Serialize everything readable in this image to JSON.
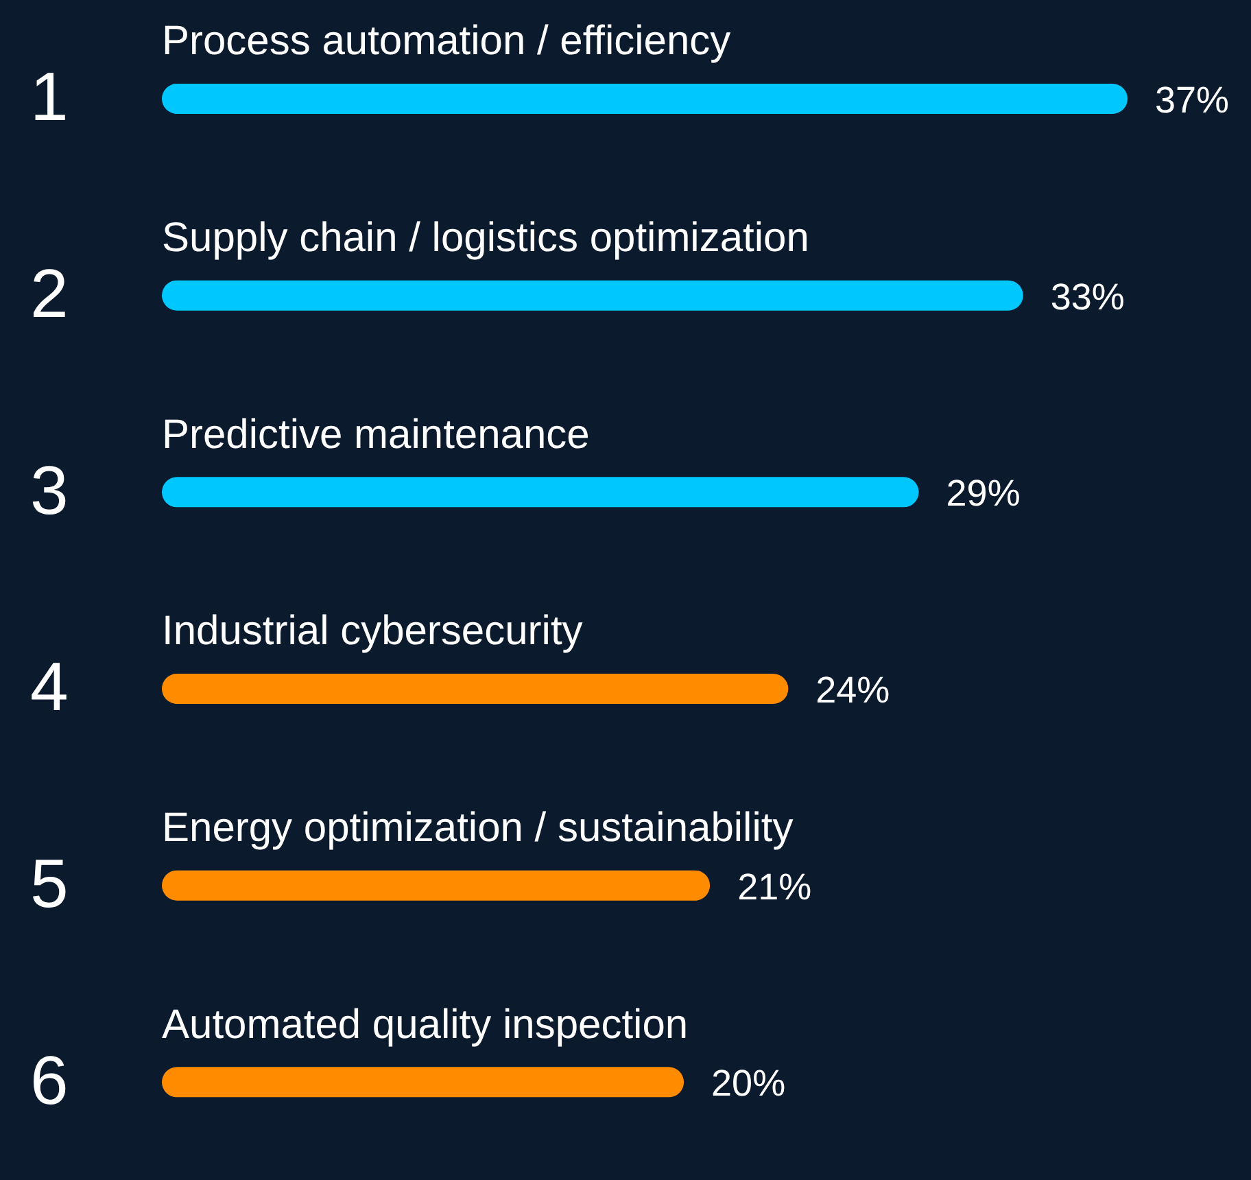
{
  "chart_data": {
    "type": "bar",
    "orientation": "horizontal",
    "categories": [
      "Process automation / efficiency",
      "Supply chain / logistics optimization",
      "Predictive maintenance",
      "Industrial cybersecurity",
      "Energy optimization / sustainability",
      "Automated quality inspection"
    ],
    "values": [
      37,
      33,
      29,
      24,
      21,
      20
    ],
    "colors": [
      "#00c8ff",
      "#00c8ff",
      "#00c8ff",
      "#ff8c00",
      "#ff8c00",
      "#ff8c00"
    ],
    "value_labels": [
      "37%",
      "33%",
      "29%",
      "24%",
      "21%",
      "20%"
    ],
    "annotations": [
      "1",
      "2",
      "3",
      "4",
      "5",
      "6"
    ],
    "grid": false,
    "legend": false
  }
}
